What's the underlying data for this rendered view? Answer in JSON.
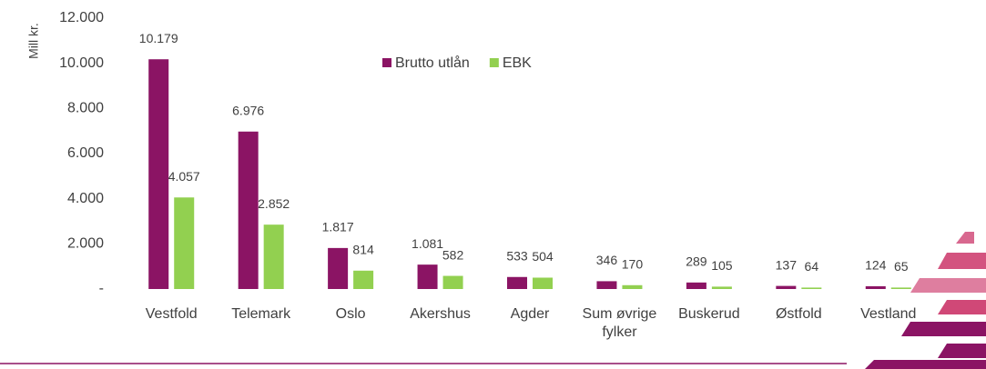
{
  "chart_data": {
    "type": "bar",
    "y_axis_label": "Mill kr.",
    "categories": [
      "Vestfold",
      "Telemark",
      "Oslo",
      "Akershus",
      "Agder",
      "Sum øvrige fylker",
      "Buskerud",
      "Østfold",
      "Vestland"
    ],
    "series": [
      {
        "name": "Brutto utlån",
        "color": "#8b1464",
        "values": [
          10179,
          6976,
          1817,
          1081,
          533,
          346,
          289,
          137,
          124
        ],
        "value_labels": [
          "10.179",
          "6.976",
          "1.817",
          "1.081",
          "533",
          "346",
          "289",
          "137",
          "124"
        ]
      },
      {
        "name": "EBK",
        "color": "#92d050",
        "values": [
          4057,
          2852,
          814,
          582,
          504,
          170,
          105,
          64,
          65
        ],
        "value_labels": [
          "4.057",
          "2.852",
          "814",
          "582",
          "504",
          "170",
          "105",
          "64",
          "65"
        ]
      }
    ],
    "ylim": [
      0,
      12000
    ],
    "yticks": [
      {
        "value": 0,
        "label": "-"
      },
      {
        "value": 2000,
        "label": "2.000"
      },
      {
        "value": 4000,
        "label": "4.000"
      },
      {
        "value": 6000,
        "label": "6.000"
      },
      {
        "value": 8000,
        "label": "8.000"
      },
      {
        "value": 10000,
        "label": "10.000"
      },
      {
        "value": 12000,
        "label": "12.000"
      }
    ],
    "grid": false,
    "legend": "top"
  }
}
